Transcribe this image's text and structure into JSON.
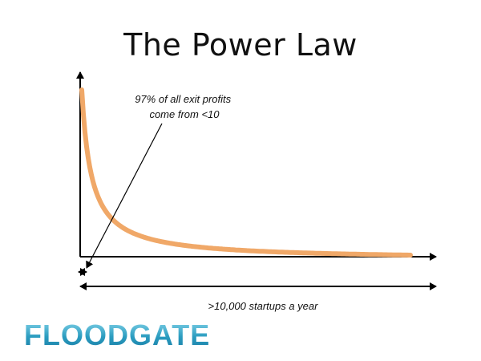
{
  "title": "The Power Law",
  "logo": "FLOODGATE",
  "colors": {
    "curve": "#f0a868",
    "axis": "#000000",
    "logo": "#2b9cc0"
  },
  "chart_data": {
    "type": "line",
    "title": "The Power Law",
    "xlabel": "",
    "ylabel": "",
    "grid": false,
    "annotations": [
      {
        "lines": [
          "97% of all exit profits",
          "come from <10"
        ],
        "text": "97% of all exit profits come from <10"
      },
      {
        "lines": [
          ">10,000 startups a year"
        ],
        "text": ">10,000 startups a year"
      }
    ],
    "series": [
      {
        "curve": "power-law decay",
        "shape": "y ∝ 1/(x + c)"
      }
    ]
  }
}
